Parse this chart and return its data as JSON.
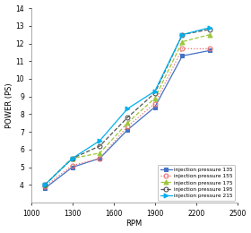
{
  "rpm": [
    1100,
    1300,
    1500,
    1700,
    1900,
    2100,
    2300
  ],
  "series": [
    {
      "label": "injection pressure 135",
      "values": [
        3.8,
        5.0,
        5.5,
        7.1,
        8.4,
        11.3,
        11.6
      ],
      "color": "#4472c4",
      "marker": "s",
      "linestyle": "-",
      "markersize": 3.5,
      "fillstyle": "full"
    },
    {
      "label": "injection pressure 155",
      "values": [
        3.9,
        5.1,
        5.5,
        7.3,
        8.6,
        11.7,
        11.7
      ],
      "color": "#f07070",
      "marker": "o",
      "linestyle": ":",
      "markersize": 3.5,
      "fillstyle": "none"
    },
    {
      "label": "injection pressure 175",
      "values": [
        4.0,
        5.5,
        5.8,
        7.5,
        8.9,
        12.1,
        12.5
      ],
      "color": "#9dc73a",
      "marker": "^",
      "linestyle": "--",
      "markersize": 3.5,
      "fillstyle": "full"
    },
    {
      "label": "injection pressure 195",
      "values": [
        4.0,
        5.5,
        6.2,
        7.8,
        9.2,
        12.5,
        12.8
      ],
      "color": "#555555",
      "marker": "o",
      "linestyle": "--",
      "markersize": 3.5,
      "fillstyle": "none"
    },
    {
      "label": "injection pressure 215",
      "values": [
        4.0,
        5.5,
        6.5,
        8.3,
        9.3,
        12.5,
        12.9
      ],
      "color": "#00b0f0",
      "marker": ">",
      "linestyle": "-",
      "markersize": 3.5,
      "fillstyle": "full"
    }
  ],
  "xlabel": "RPM",
  "ylabel": "POWER (PS)",
  "xlim": [
    1000,
    2500
  ],
  "ylim": [
    3,
    14
  ],
  "yticks": [
    4,
    5,
    6,
    7,
    8,
    9,
    10,
    11,
    12,
    13,
    14
  ],
  "xticks": [
    1000,
    1300,
    1600,
    1900,
    2200,
    2500
  ],
  "background_color": "#ffffff",
  "plot_bg_color": "#ffffff"
}
